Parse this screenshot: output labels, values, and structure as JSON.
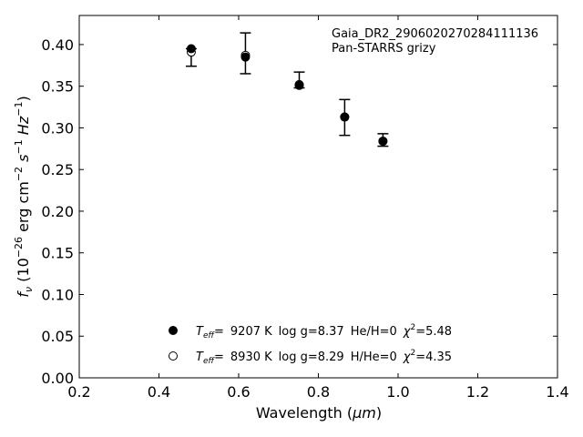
{
  "chart_data": {
    "type": "scatter",
    "title": "",
    "xlabel": "Wavelength",
    "xlabel_unit": "μm",
    "ylabel_symbol": "f",
    "ylabel_subscript": "ν",
    "ylabel_unit_base": "10",
    "ylabel_unit_exp": "−26",
    "ylabel_unit_rest": "erg cm",
    "ylabel_unit_cm_exp": "−2",
    "ylabel_unit_s": "s",
    "ylabel_unit_s_exp": "−1",
    "ylabel_unit_hz": "Hz",
    "ylabel_unit_hz_exp": "−1",
    "xlim": [
      0.2,
      1.4
    ],
    "ylim": [
      0.0,
      0.4349
    ],
    "xticks": [
      0.2,
      0.4,
      0.6,
      0.8,
      1.0,
      1.2,
      1.4
    ],
    "xtick_labels": [
      "0.2",
      "0.4",
      "0.6",
      "0.8",
      "1.0",
      "1.2",
      "1.4"
    ],
    "yticks": [
      0.0,
      0.05,
      0.1,
      0.15,
      0.2,
      0.25,
      0.3,
      0.35,
      0.4
    ],
    "ytick_labels": [
      "0.00",
      "0.05",
      "0.10",
      "0.15",
      "0.20",
      "0.25",
      "0.30",
      "0.35",
      "0.40"
    ],
    "grid": false,
    "legend_position": "bottom-center",
    "annotations": [
      "Gaia_DR2_2906020270284111136",
      "Pan-STARRS grizy"
    ],
    "observed": {
      "x": [
        0.481,
        0.617,
        0.752,
        0.866,
        0.962
      ],
      "y": [
        0.3845,
        0.3895,
        0.3575,
        0.3125,
        0.2855
      ],
      "yerr": [
        0.0105,
        0.0245,
        0.0095,
        0.0215,
        0.0075
      ]
    },
    "series": [
      {
        "name": "Teff= 9207 K log g=8.37 He/H=0 χ2=5.48",
        "marker": "filled-circle",
        "x": [
          0.481,
          0.617,
          0.752,
          0.866,
          0.962
        ],
        "y": [
          0.395,
          0.385,
          0.351,
          0.313,
          0.284
        ],
        "legend": {
          "t_label": "T",
          "t_sub": "eff",
          "eq": "=",
          "teff": "9207 K",
          "logg": "log g=8.37",
          "comp": "He/H=0",
          "chi_label": "χ",
          "chi_exp": "2",
          "chi_val": "=5.48"
        }
      },
      {
        "name": "Teff= 8930 K log g=8.29 H/He=0 χ2=4.35",
        "marker": "open-circle",
        "x": [
          0.481,
          0.617,
          0.752,
          0.866,
          0.962
        ],
        "y": [
          0.391,
          0.387,
          0.352,
          0.313,
          0.284
        ],
        "legend": {
          "t_label": "T",
          "t_sub": "eff",
          "eq": "=",
          "teff": "8930 K",
          "logg": "log g=8.29",
          "comp": "H/He=0",
          "chi_label": "χ",
          "chi_exp": "2",
          "chi_val": "=4.35"
        }
      }
    ]
  }
}
